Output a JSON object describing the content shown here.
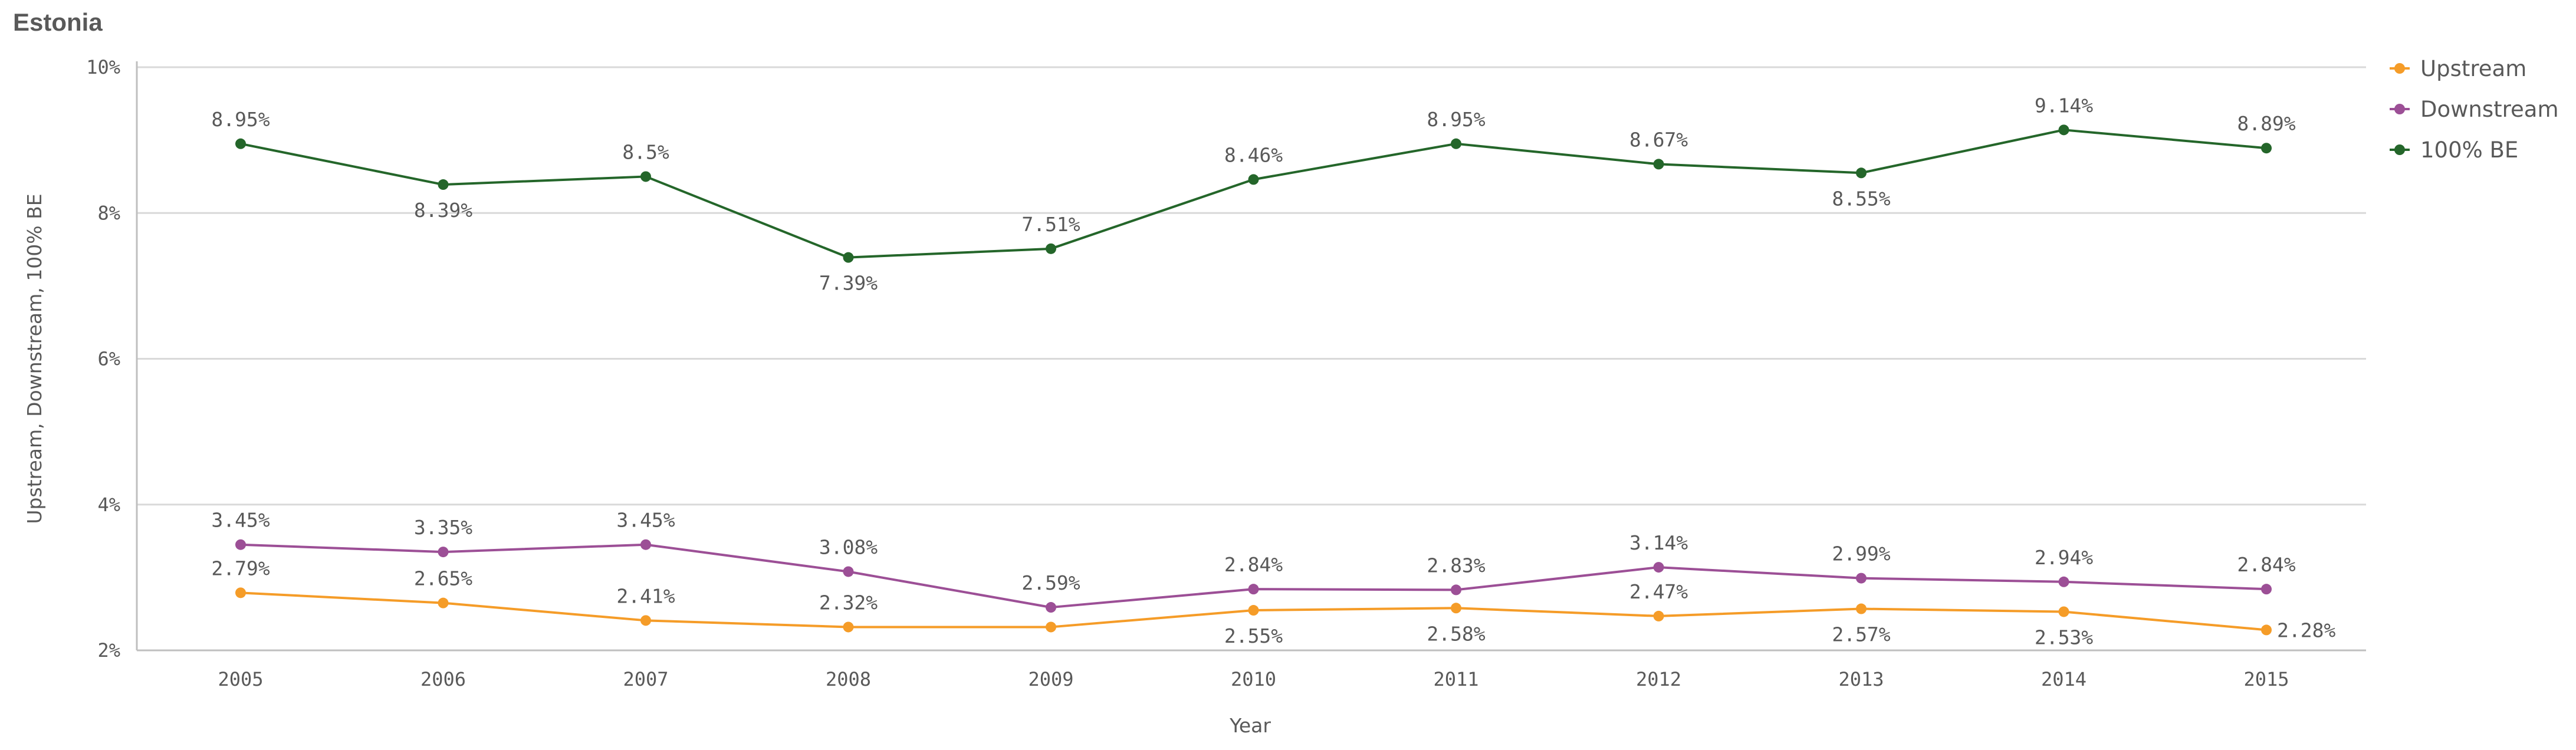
{
  "chart_data": {
    "type": "line",
    "title": "Estonia",
    "xlabel": "Year",
    "ylabel": "Upstream, Downstream, 100% BE",
    "categories": [
      "2005",
      "2006",
      "2007",
      "2008",
      "2009",
      "2010",
      "2011",
      "2012",
      "2013",
      "2014",
      "2015"
    ],
    "ylim": [
      2,
      10
    ],
    "yticks": [
      2,
      4,
      6,
      8,
      10
    ],
    "ytick_labels": [
      "2%",
      "4%",
      "6%",
      "8%",
      "10%"
    ],
    "grid": true,
    "legend_position": "right",
    "series": [
      {
        "name": "Upstream",
        "color": "#f59c28",
        "values": [
          2.79,
          2.65,
          2.41,
          2.32,
          2.32,
          2.55,
          2.58,
          2.47,
          2.57,
          2.53,
          2.28
        ],
        "labels": [
          "2.79%",
          "2.65%",
          "2.41%",
          "2.32%",
          "",
          "2.55%",
          "2.58%",
          "2.47%",
          "2.57%",
          "2.53%",
          "2.28%"
        ]
      },
      {
        "name": "Downstream",
        "color": "#9c4f96",
        "values": [
          3.45,
          3.35,
          3.45,
          3.08,
          2.59,
          2.84,
          2.83,
          3.14,
          2.99,
          2.94,
          2.84
        ],
        "labels": [
          "3.45%",
          "3.35%",
          "3.45%",
          "3.08%",
          "2.59%",
          "2.84%",
          "2.83%",
          "3.14%",
          "2.99%",
          "2.94%",
          "2.84%"
        ]
      },
      {
        "name": "100% BE",
        "color": "#24662a",
        "values": [
          8.95,
          8.39,
          8.5,
          7.39,
          7.51,
          8.46,
          8.95,
          8.67,
          8.55,
          9.14,
          8.89
        ],
        "labels": [
          "8.95%",
          "8.39%",
          "8.5%",
          "7.39%",
          "7.51%",
          "8.46%",
          "8.95%",
          "8.67%",
          "8.55%",
          "9.14%",
          "8.89%"
        ]
      }
    ]
  }
}
